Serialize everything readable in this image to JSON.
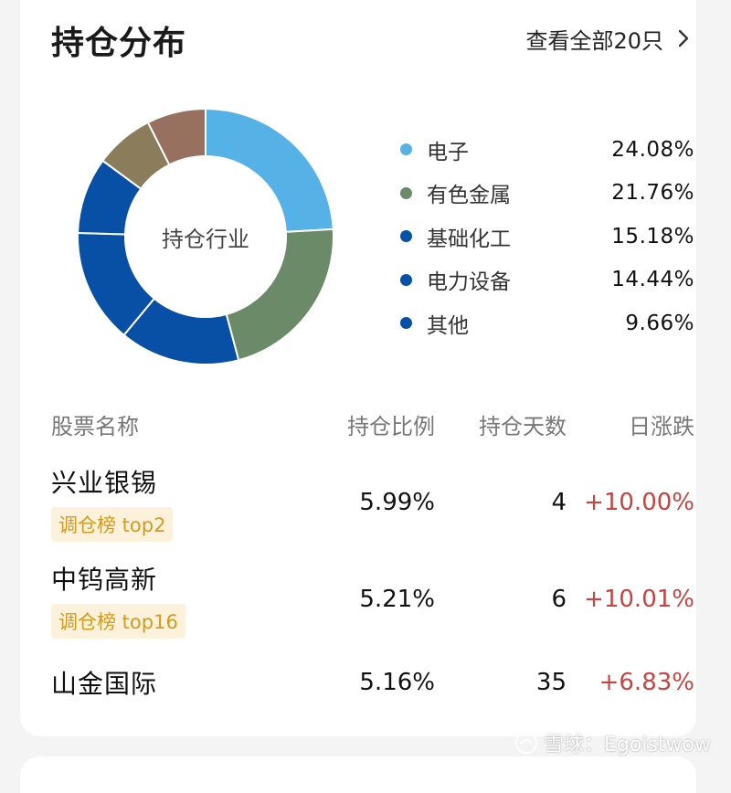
{
  "header": {
    "title": "持仓分布",
    "view_all": "查看全部20只"
  },
  "donut": {
    "center_label": "持仓行业"
  },
  "chart_data": {
    "type": "pie",
    "categories": [
      "电子",
      "有色金属",
      "基础化工",
      "电力设备",
      "其他"
    ],
    "values": [
      24.08,
      21.76,
      15.18,
      14.44,
      9.66
    ],
    "colors": [
      "#56b1e6",
      "#6b8a67",
      "#0850a6",
      "#0850a6",
      "#0850a6"
    ],
    "hidden_remainder_colors": [
      "#8b7c5c",
      "#98705f"
    ]
  },
  "legend": [
    {
      "label": "电子",
      "pct": "24.08%",
      "color": "#56b1e6"
    },
    {
      "label": "有色金属",
      "pct": "21.76%",
      "color": "#6b8a67"
    },
    {
      "label": "基础化工",
      "pct": "15.18%",
      "color": "#0850a6"
    },
    {
      "label": "电力设备",
      "pct": "14.44%",
      "color": "#0850a6"
    },
    {
      "label": "其他",
      "pct": "9.66%",
      "color": "#0850a6"
    }
  ],
  "table": {
    "headers": {
      "name": "股票名称",
      "ratio": "持仓比例",
      "days": "持仓天数",
      "change": "日涨跌"
    },
    "rows": [
      {
        "name": "兴业银锡",
        "tag": "调仓榜 top2",
        "ratio": "5.99%",
        "days": "4",
        "change": "+10.00%"
      },
      {
        "name": "中钨高新",
        "tag": "调仓榜 top16",
        "ratio": "5.21%",
        "days": "6",
        "change": "+10.01%"
      },
      {
        "name": "山金国际",
        "tag": "",
        "ratio": "5.16%",
        "days": "35",
        "change": "+6.83%"
      }
    ]
  },
  "watermark": {
    "text": "雪球：Egoistwow"
  }
}
